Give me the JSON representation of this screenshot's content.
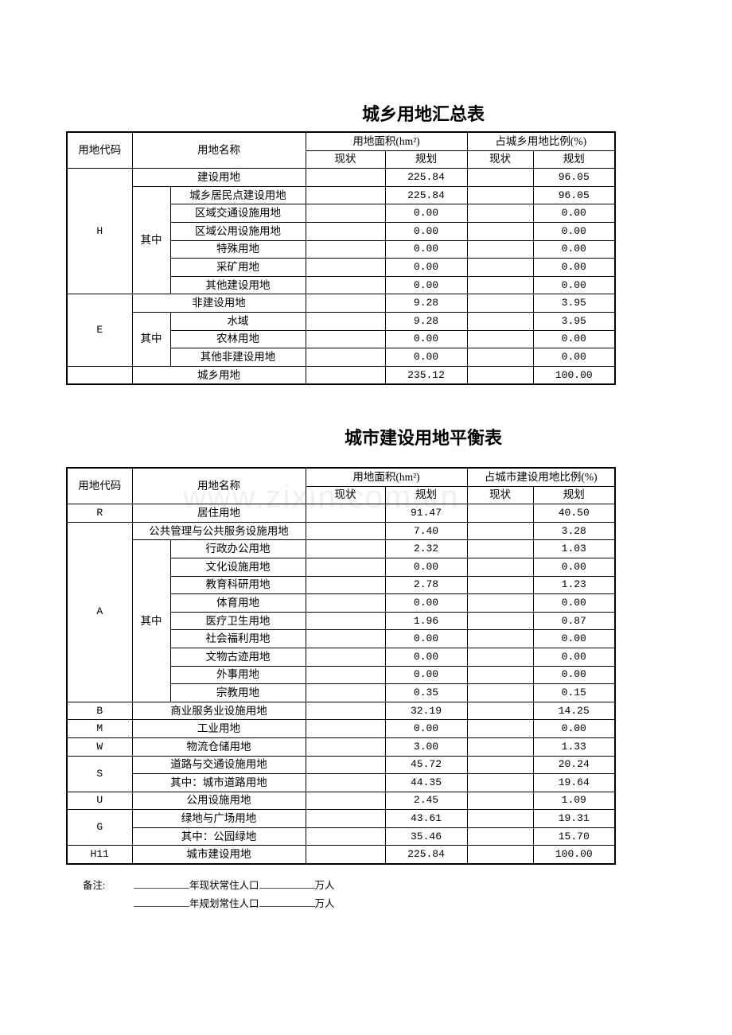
{
  "watermark": "www.zixin.com.cn",
  "table1": {
    "title": "城乡用地汇总表",
    "headers": {
      "code": "用地代码",
      "name": "用地名称",
      "area": "用地面积(hm²)",
      "ratio": "占城乡用地比例(%)",
      "current": "现状",
      "plan": "规划"
    },
    "groups": [
      {
        "code": "H",
        "rows": [
          {
            "name": "建设用地",
            "current_area": "",
            "plan_area": "225.84",
            "current_ratio": "",
            "plan_ratio": "96.05"
          }
        ],
        "sub": {
          "label": "其中",
          "rows": [
            {
              "name": "城乡居民点建设用地",
              "current_area": "",
              "plan_area": "225.84",
              "current_ratio": "",
              "plan_ratio": "96.05"
            },
            {
              "name": "区域交通设施用地",
              "current_area": "",
              "plan_area": "0.00",
              "current_ratio": "",
              "plan_ratio": "0.00"
            },
            {
              "name": "区域公用设施用地",
              "current_area": "",
              "plan_area": "0.00",
              "current_ratio": "",
              "plan_ratio": "0.00"
            },
            {
              "name": "特殊用地",
              "current_area": "",
              "plan_area": "0.00",
              "current_ratio": "",
              "plan_ratio": "0.00"
            },
            {
              "name": "采矿用地",
              "current_area": "",
              "plan_area": "0.00",
              "current_ratio": "",
              "plan_ratio": "0.00"
            },
            {
              "name": "其他建设用地",
              "current_area": "",
              "plan_area": "0.00",
              "current_ratio": "",
              "plan_ratio": "0.00"
            }
          ]
        }
      },
      {
        "code": "E",
        "rows": [
          {
            "name": "非建设用地",
            "current_area": "",
            "plan_area": "9.28",
            "current_ratio": "",
            "plan_ratio": "3.95"
          }
        ],
        "sub": {
          "label": "其中",
          "rows": [
            {
              "name": "水域",
              "current_area": "",
              "plan_area": "9.28",
              "current_ratio": "",
              "plan_ratio": "3.95"
            },
            {
              "name": "农林用地",
              "current_area": "",
              "plan_area": "0.00",
              "current_ratio": "",
              "plan_ratio": "0.00"
            },
            {
              "name": "其他非建设用地",
              "current_area": "",
              "plan_area": "0.00",
              "current_ratio": "",
              "plan_ratio": "0.00"
            }
          ]
        }
      },
      {
        "code": "",
        "rows": [
          {
            "name": "城乡用地",
            "current_area": "",
            "plan_area": "235.12",
            "current_ratio": "",
            "plan_ratio": "100.00"
          }
        ]
      }
    ]
  },
  "table2": {
    "title": "城市建设用地平衡表",
    "headers": {
      "code": "用地代码",
      "name": "用地名称",
      "area": "用地面积(hm²)",
      "ratio": "占城市建设用地比例(%)",
      "current": "现状",
      "plan": "规划"
    },
    "groups": [
      {
        "code": "R",
        "rows": [
          {
            "name": "居住用地",
            "current_area": "",
            "plan_area": "91.47",
            "current_ratio": "",
            "plan_ratio": "40.50"
          }
        ]
      },
      {
        "code": "A",
        "rows": [
          {
            "name": "公共管理与公共服务设施用地",
            "current_area": "",
            "plan_area": "7.40",
            "current_ratio": "",
            "plan_ratio": "3.28"
          }
        ],
        "sub": {
          "label": "其中",
          "rows": [
            {
              "name": "行政办公用地",
              "current_area": "",
              "plan_area": "2.32",
              "current_ratio": "",
              "plan_ratio": "1.03"
            },
            {
              "name": "文化设施用地",
              "current_area": "",
              "plan_area": "0.00",
              "current_ratio": "",
              "plan_ratio": "0.00"
            },
            {
              "name": "教育科研用地",
              "current_area": "",
              "plan_area": "2.78",
              "current_ratio": "",
              "plan_ratio": "1.23"
            },
            {
              "name": "体育用地",
              "current_area": "",
              "plan_area": "0.00",
              "current_ratio": "",
              "plan_ratio": "0.00"
            },
            {
              "name": "医疗卫生用地",
              "current_area": "",
              "plan_area": "1.96",
              "current_ratio": "",
              "plan_ratio": "0.87"
            },
            {
              "name": "社会福利用地",
              "current_area": "",
              "plan_area": "0.00",
              "current_ratio": "",
              "plan_ratio": "0.00"
            },
            {
              "name": "文物古迹用地",
              "current_area": "",
              "plan_area": "0.00",
              "current_ratio": "",
              "plan_ratio": "0.00"
            },
            {
              "name": "外事用地",
              "current_area": "",
              "plan_area": "0.00",
              "current_ratio": "",
              "plan_ratio": "0.00"
            },
            {
              "name": "宗教用地",
              "current_area": "",
              "plan_area": "0.35",
              "current_ratio": "",
              "plan_ratio": "0.15"
            }
          ]
        }
      },
      {
        "code": "B",
        "rows": [
          {
            "name": "商业服务业设施用地",
            "current_area": "",
            "plan_area": "32.19",
            "current_ratio": "",
            "plan_ratio": "14.25"
          }
        ]
      },
      {
        "code": "M",
        "rows": [
          {
            "name": "工业用地",
            "current_area": "",
            "plan_area": "0.00",
            "current_ratio": "",
            "plan_ratio": "0.00"
          }
        ]
      },
      {
        "code": "W",
        "rows": [
          {
            "name": "物流仓储用地",
            "current_area": "",
            "plan_area": "3.00",
            "current_ratio": "",
            "plan_ratio": "1.33"
          }
        ]
      },
      {
        "code": "S",
        "rows": [
          {
            "name": "道路与交通设施用地",
            "current_area": "",
            "plan_area": "45.72",
            "current_ratio": "",
            "plan_ratio": "20.24"
          },
          {
            "name": "其中：城市道路用地",
            "current_area": "",
            "plan_area": "44.35",
            "current_ratio": "",
            "plan_ratio": "19.64"
          }
        ]
      },
      {
        "code": "U",
        "rows": [
          {
            "name": "公用设施用地",
            "current_area": "",
            "plan_area": "2.45",
            "current_ratio": "",
            "plan_ratio": "1.09"
          }
        ]
      },
      {
        "code": "G",
        "rows": [
          {
            "name": "绿地与广场用地",
            "current_area": "",
            "plan_area": "43.61",
            "current_ratio": "",
            "plan_ratio": "19.31"
          },
          {
            "name": "其中：公园绿地",
            "current_area": "",
            "plan_area": "35.46",
            "current_ratio": "",
            "plan_ratio": "15.70"
          }
        ]
      },
      {
        "code": "H11",
        "rows": [
          {
            "name": "城市建设用地",
            "current_area": "",
            "plan_area": "225.84",
            "current_ratio": "",
            "plan_ratio": "100.00"
          }
        ]
      }
    ]
  },
  "notes": {
    "label": "备注:",
    "line1_text1": "年现状常住人口",
    "line1_text2": "万人",
    "line2_text1": "年规划常住人口",
    "line2_text2": "万人"
  }
}
